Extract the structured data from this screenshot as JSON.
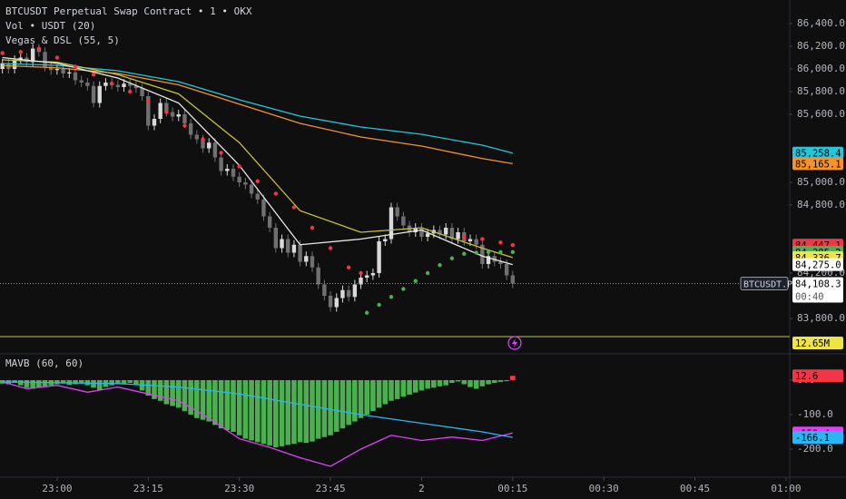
{
  "header": {
    "lines": [
      "BTCUSDT Perpetual Swap Contract • 1 • OKX",
      "Vol • USDT (20)",
      "Vegas & DSL (55, 5)"
    ]
  },
  "chart_data": [
    {
      "type": "candlestick",
      "x": [
        1371,
        1372,
        1373,
        1374,
        1375,
        1376,
        1377,
        1378,
        1379,
        1380,
        1381,
        1382,
        1383,
        1384,
        1385,
        1386,
        1387,
        1388,
        1389,
        1390,
        1391,
        1392,
        1393,
        1394,
        1395,
        1396,
        1397,
        1398,
        1399,
        1400,
        1401,
        1402,
        1403,
        1404,
        1405,
        1406,
        1407,
        1408,
        1409,
        1410,
        1411,
        1412,
        1413,
        1414,
        1415,
        1416,
        1417,
        1418,
        1419,
        1420,
        1421,
        1422,
        1423,
        1424,
        1425,
        1426,
        1427,
        1428,
        1429,
        1430,
        1431,
        1432,
        1433,
        1434,
        1435,
        1436,
        1437,
        1438,
        1439,
        1440,
        1441,
        1442,
        1443,
        1444,
        1445,
        1446,
        1447,
        1448,
        1449,
        1450,
        1451,
        1452,
        1453,
        1454,
        1455
      ],
      "open": [
        86000,
        86050,
        86000,
        86080,
        86100,
        86060,
        86180,
        86150,
        86020,
        85990,
        86000,
        85960,
        85970,
        85900,
        85880,
        85850,
        85700,
        85850,
        85880,
        85860,
        85840,
        85870,
        85850,
        85830,
        85760,
        85500,
        85560,
        85700,
        85620,
        85580,
        85600,
        85520,
        85420,
        85380,
        85300,
        85350,
        85220,
        85100,
        85120,
        85050,
        85000,
        84980,
        84900,
        84850,
        84700,
        84600,
        84420,
        84500,
        84380,
        84450,
        84300,
        84350,
        84250,
        84100,
        84000,
        83900,
        83980,
        84050,
        83990,
        84100,
        84160,
        84180,
        84200,
        84480,
        84500,
        84780,
        84700,
        84620,
        84560,
        84600,
        84520,
        84550,
        84580,
        84540,
        84600,
        84500,
        84560,
        84480,
        84500,
        84450,
        84280,
        84350,
        84300,
        84280,
        84180
      ],
      "high": [
        86090,
        86090,
        86120,
        86140,
        86140,
        86220,
        86220,
        86190,
        86060,
        86040,
        86040,
        86010,
        86010,
        85940,
        85920,
        85890,
        85890,
        85920,
        85920,
        85900,
        85910,
        85910,
        85890,
        85870,
        85800,
        85600,
        85740,
        85740,
        85660,
        85640,
        85640,
        85560,
        85460,
        85420,
        85390,
        85390,
        85260,
        85160,
        85160,
        85090,
        85040,
        85020,
        84940,
        84890,
        84740,
        84640,
        84540,
        84540,
        84490,
        84490,
        84390,
        84390,
        84290,
        84140,
        84040,
        84020,
        84090,
        84090,
        84140,
        84200,
        84220,
        84240,
        84520,
        84540,
        84820,
        84820,
        84740,
        84660,
        84640,
        84640,
        84590,
        84620,
        84620,
        84640,
        84640,
        84600,
        84600,
        84540,
        84540,
        84490,
        84390,
        84390,
        84340,
        84320,
        84220
      ],
      "low": [
        85960,
        85960,
        85960,
        86040,
        86020,
        86020,
        86110,
        85980,
        85950,
        85950,
        85920,
        85920,
        85860,
        85840,
        85810,
        85660,
        85660,
        85810,
        85820,
        85800,
        85800,
        85810,
        85790,
        85720,
        85460,
        85460,
        85520,
        85580,
        85540,
        85540,
        85480,
        85380,
        85340,
        85260,
        85260,
        85180,
        85060,
        85060,
        85010,
        84960,
        84940,
        84860,
        84810,
        84660,
        84560,
        84380,
        84380,
        84340,
        84340,
        84260,
        84260,
        84210,
        84060,
        83960,
        83860,
        83860,
        83940,
        83950,
        83950,
        84060,
        84120,
        84140,
        84160,
        84440,
        84460,
        84660,
        84580,
        84520,
        84520,
        84480,
        84480,
        84510,
        84500,
        84500,
        84460,
        84460,
        84440,
        84440,
        84410,
        84240,
        84240,
        84260,
        84240,
        84140,
        84068
      ],
      "close": [
        86050,
        86000,
        86080,
        86100,
        86060,
        86180,
        86150,
        86020,
        85990,
        86000,
        85960,
        85970,
        85900,
        85880,
        85850,
        85700,
        85850,
        85880,
        85860,
        85840,
        85870,
        85850,
        85830,
        85760,
        85500,
        85560,
        85700,
        85620,
        85580,
        85600,
        85520,
        85420,
        85380,
        85300,
        85350,
        85220,
        85100,
        85120,
        85050,
        85000,
        84980,
        84900,
        84850,
        84700,
        84600,
        84420,
        84500,
        84380,
        84450,
        84300,
        84350,
        84250,
        84100,
        84000,
        83900,
        83980,
        84050,
        83990,
        84100,
        84160,
        84180,
        84200,
        84480,
        84500,
        84780,
        84700,
        84620,
        84560,
        84600,
        84520,
        84550,
        84580,
        84540,
        84600,
        84500,
        84560,
        84480,
        84500,
        84450,
        84280,
        84350,
        84300,
        84280,
        84180,
        84108.3
      ],
      "up_color": "#d9d9d9",
      "down_color": "#707070",
      "series": [
        {
          "style": "line",
          "color": "#26c6da",
          "x": [
            1371,
            1380,
            1390,
            1400,
            1410,
            1420,
            1430,
            1440,
            1450,
            1455
          ],
          "values": [
            86048,
            86032,
            85984,
            85888,
            85728,
            85584,
            85488,
            85424,
            85328,
            85258.4
          ]
        },
        {
          "style": "line",
          "color": "#f5922f",
          "x": [
            1371,
            1380,
            1390,
            1400,
            1410,
            1420,
            1430,
            1440,
            1450,
            1455
          ],
          "values": [
            86030,
            86010,
            85960,
            85860,
            85690,
            85520,
            85400,
            85320,
            85210,
            85165.1
          ]
        },
        {
          "style": "line",
          "color": "#c9c23a",
          "x": [
            1371,
            1380,
            1390,
            1400,
            1410,
            1420,
            1430,
            1440,
            1450,
            1455
          ],
          "values": [
            86080,
            86060,
            85950,
            85780,
            85350,
            84750,
            84560,
            84600,
            84420,
            84336.7
          ]
        },
        {
          "style": "line",
          "color": "#e8e8e8",
          "x": [
            1371,
            1380,
            1390,
            1400,
            1410,
            1420,
            1430,
            1440,
            1450,
            1455
          ],
          "values": [
            86100,
            86050,
            85920,
            85700,
            85150,
            84450,
            84500,
            84580,
            84350,
            84275.0
          ]
        },
        {
          "style": "dots",
          "color": "#f23645",
          "x": [
            1371,
            1374,
            1377,
            1380,
            1383,
            1386,
            1389,
            1392,
            1395,
            1398,
            1401,
            1404,
            1407,
            1410,
            1413,
            1416,
            1419,
            1422,
            1425,
            1428,
            1430,
            1447,
            1450,
            1453,
            1455
          ],
          "values": [
            86140,
            86150,
            86180,
            86100,
            86020,
            85950,
            85870,
            85800,
            85720,
            85620,
            85500,
            85380,
            85260,
            85140,
            85010,
            84900,
            84780,
            84600,
            84420,
            84250,
            84200,
            84520,
            84500,
            84470,
            84447.1
          ]
        },
        {
          "style": "dots",
          "color": "#4caf50",
          "x": [
            1431,
            1433,
            1435,
            1437,
            1439,
            1441,
            1443,
            1445,
            1447,
            1449,
            1451,
            1453,
            1455
          ],
          "values": [
            83850,
            83920,
            83990,
            84060,
            84130,
            84200,
            84270,
            84330,
            84370,
            84380,
            84385,
            84385,
            84385.2
          ]
        }
      ],
      "xlim": [
        1370.6,
        1500.6
      ],
      "xticks": [
        {
          "value": 1380,
          "label": "23:00"
        },
        {
          "value": 1395,
          "label": "23:15"
        },
        {
          "value": 1410,
          "label": "23:30"
        },
        {
          "value": 1425,
          "label": "23:45"
        },
        {
          "value": 1440,
          "label": "2"
        },
        {
          "value": 1455,
          "label": "00:15"
        },
        {
          "value": 1470,
          "label": "00:30"
        },
        {
          "value": 1485,
          "label": "00:45"
        },
        {
          "value": 1500,
          "label": "01:00"
        }
      ],
      "ylim": [
        83504,
        86608
      ],
      "yticks": [
        {
          "value": 83800,
          "label": "83,800.0"
        },
        {
          "value": 84200,
          "label": "84,200.0"
        },
        {
          "value": 84800,
          "label": "84,800.0"
        },
        {
          "value": 85000,
          "label": "85,000.0"
        },
        {
          "value": 85600,
          "label": "85,600.0"
        },
        {
          "value": 85800,
          "label": "85,800.0"
        },
        {
          "value": 86000,
          "label": "86,000.0"
        },
        {
          "value": 86200,
          "label": "86,200.0"
        },
        {
          "value": 86400,
          "label": "86,400.0"
        }
      ],
      "price_tags": [
        {
          "value": 85258.4,
          "label": "85,258.4",
          "color": "#26c6da"
        },
        {
          "value": 85165.1,
          "label": "85,165.1",
          "color": "#f5922f"
        },
        {
          "value": 84447.1,
          "label": "84,447.1",
          "color": "#f23645"
        },
        {
          "value": 84385.2,
          "label": "84,385.2",
          "color": "#4caf50"
        },
        {
          "value": 84336.7,
          "label": "84,336.7",
          "color": "#f0e442"
        },
        {
          "value": 84275.0,
          "label": "84,275.0",
          "color": "#ffffff"
        }
      ],
      "last_price": {
        "value": 84108.3,
        "label": "84,108.3"
      },
      "symbol_tag": "BTCUSDT.P",
      "countdown": "00:40",
      "volume_tag": "12.65M",
      "grid": false
    },
    {
      "type": "bar",
      "title": "MAVB (60, 60)",
      "x": [
        1371,
        1372,
        1373,
        1374,
        1375,
        1376,
        1377,
        1378,
        1379,
        1380,
        1381,
        1382,
        1383,
        1384,
        1385,
        1386,
        1387,
        1388,
        1389,
        1390,
        1391,
        1392,
        1393,
        1394,
        1395,
        1396,
        1397,
        1398,
        1399,
        1400,
        1401,
        1402,
        1403,
        1404,
        1405,
        1406,
        1407,
        1408,
        1409,
        1410,
        1411,
        1412,
        1413,
        1414,
        1415,
        1416,
        1417,
        1418,
        1419,
        1420,
        1421,
        1422,
        1423,
        1424,
        1425,
        1426,
        1427,
        1428,
        1429,
        1430,
        1431,
        1432,
        1433,
        1434,
        1435,
        1436,
        1437,
        1438,
        1439,
        1440,
        1441,
        1442,
        1443,
        1444,
        1445,
        1446,
        1447,
        1448,
        1449,
        1450,
        1451,
        1452,
        1453,
        1454,
        1455
      ],
      "values": [
        -10,
        -12,
        -8,
        -15,
        -22,
        -25,
        -20,
        -18,
        -15,
        -12,
        -10,
        -14,
        -12,
        -10,
        -15,
        -22,
        -28,
        -20,
        -15,
        -12,
        -10,
        -8,
        -12,
        -30,
        -45,
        -55,
        -60,
        -70,
        -75,
        -80,
        -90,
        -100,
        -110,
        -115,
        -120,
        -130,
        -140,
        -145,
        -150,
        -160,
        -170,
        -175,
        -180,
        -185,
        -190,
        -195,
        -192,
        -188,
        -185,
        -180,
        -182,
        -178,
        -170,
        -165,
        -160,
        -150,
        -140,
        -130,
        -120,
        -110,
        -100,
        -90,
        -80,
        -70,
        -60,
        -55,
        -48,
        -42,
        -36,
        -30,
        -25,
        -22,
        -18,
        -15,
        -8,
        -4,
        -12,
        -20,
        -25,
        -18,
        -12,
        -8,
        -5,
        -3,
        12.6
      ],
      "negative_color": "#4caf50",
      "positive_color": "#f23645",
      "series": [
        {
          "style": "line",
          "color": "#e040fb",
          "x": [
            1371,
            1375,
            1380,
            1385,
            1390,
            1395,
            1400,
            1405,
            1410,
            1415,
            1420,
            1425,
            1430,
            1435,
            1440,
            1445,
            1450,
            1455
          ],
          "values": [
            -5,
            -25,
            -15,
            -35,
            -20,
            -40,
            -60,
            -110,
            -170,
            -195,
            -225,
            -250,
            -200,
            -160,
            -175,
            -165,
            -175,
            -153.4
          ]
        },
        {
          "style": "line",
          "color": "#29b6f6",
          "x": [
            1371,
            1390,
            1400,
            1410,
            1420,
            1430,
            1440,
            1450,
            1455
          ],
          "values": [
            -5,
            -10,
            -20,
            -40,
            -70,
            -100,
            -125,
            -150,
            -166.1
          ]
        }
      ],
      "xlim": [
        1370.6,
        1500.6
      ],
      "ylim": [
        -279,
        71
      ],
      "yticks": [
        {
          "value": 0,
          "label": "0.0"
        },
        {
          "value": -100,
          "label": "-100.0"
        },
        {
          "value": -200,
          "label": "-200.0"
        }
      ],
      "price_tags": [
        {
          "value": 12.6,
          "label": "12.6",
          "color": "#f23645"
        },
        {
          "value": -153.4,
          "label": "-153.4",
          "color": "#e040fb"
        },
        {
          "value": -166.1,
          "label": "-166.1",
          "color": "#29b6f6"
        }
      ],
      "grid": false
    }
  ]
}
